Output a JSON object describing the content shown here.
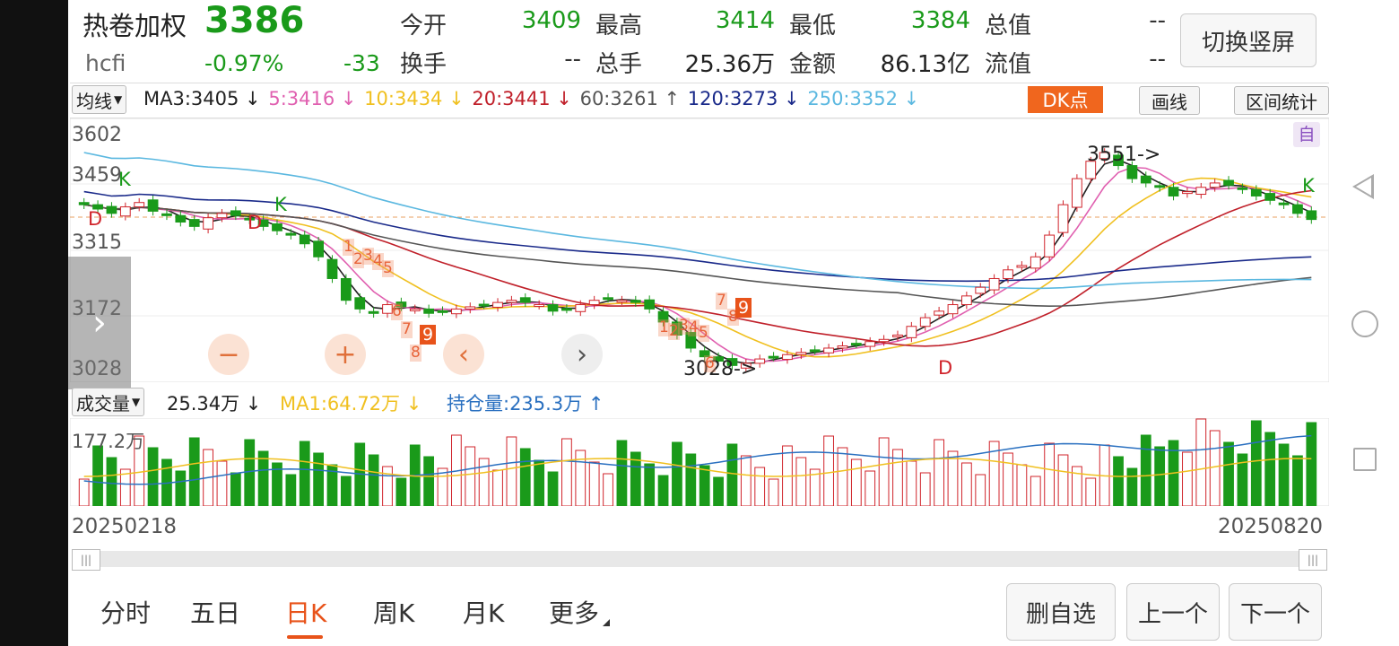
{
  "header": {
    "name": "热卷加权",
    "price": "3386",
    "code": "hcfi",
    "change_pct": "-0.97%",
    "change": "-33",
    "open_label": "今开",
    "open": "3409",
    "high_label": "最高",
    "high": "3414",
    "low_label": "最低",
    "low": "3384",
    "total_value_label": "总值",
    "total_value": "--",
    "turnover_label": "换手",
    "turnover": "--",
    "total_hands_label": "总手",
    "total_hands": "25.36万",
    "amount_label": "金额",
    "amount": "86.13亿",
    "float_value_label": "流值",
    "float_value": "--",
    "toggle_label": "切换竖屏"
  },
  "ma_bar": {
    "select_label": "均线",
    "ma3": "MA3:3405 ↓",
    "ma5": "5:3416 ↓",
    "ma10": "10:3434 ↓",
    "ma20": "20:3441 ↓",
    "ma60": "60:3261 ↑",
    "ma120": "120:3273 ↓",
    "ma250": "250:3352 ↓",
    "dk_label": "DK点",
    "draw_label": "画线",
    "stats_label": "区间统计"
  },
  "colors": {
    "up": "#d0242b",
    "down": "#1a9a1a",
    "ma3": "#222222",
    "ma5": "#e060b0",
    "ma10": "#f0c020",
    "ma20": "#c0202a",
    "ma60": "#555555",
    "ma120": "#1a2a8a",
    "ma250": "#5bb8e0",
    "dk": "#f0661e"
  },
  "price_axis": [
    "3602",
    "3459",
    "3315",
    "3172",
    "3028"
  ],
  "chart_annotations": {
    "high_marker": "3551->",
    "low_marker": "3028->",
    "k1": "K",
    "k2": "K",
    "k3": "K",
    "d1": "D",
    "d2": "D",
    "d3": "D",
    "self_tag": "自",
    "seq1": [
      "1",
      "2",
      "3",
      "4",
      "5",
      "6",
      "7",
      "8",
      "9"
    ],
    "seq2": [
      "1",
      "2",
      "3",
      "4",
      "5",
      "6",
      "7",
      "8",
      "9"
    ]
  },
  "volume_bar": {
    "select_label": "成交量",
    "vol": "25.34万 ↓",
    "ma1": "MA1:64.72万 ↓",
    "oi": "持仓量:235.3万 ↑",
    "axis_top": "177.2万"
  },
  "dates": {
    "start": "20250218",
    "end": "20250820"
  },
  "tabs": [
    "分时",
    "五日",
    "日K",
    "周K",
    "月K",
    "更多"
  ],
  "active_tab": "日K",
  "buttons": {
    "remove_fav": "删自选",
    "prev": "上一个",
    "next": "下一个"
  },
  "zoom": {
    "minus": "−",
    "plus": "+",
    "left": "‹",
    "right": "›"
  },
  "chart_data": {
    "type": "candlestick",
    "ylim": [
      3028,
      3602
    ],
    "close_levels": [
      3420,
      3410,
      3400,
      3415,
      3425,
      3405,
      3395,
      3380,
      3370,
      3390,
      3400,
      3395,
      3385,
      3370,
      3360,
      3350,
      3330,
      3300,
      3250,
      3200,
      3180,
      3170,
      3190,
      3185,
      3180,
      3170,
      3175,
      3180,
      3185,
      3190,
      3195,
      3200,
      3195,
      3190,
      3175,
      3180,
      3190,
      3200,
      3205,
      3200,
      3195,
      3180,
      3150,
      3120,
      3090,
      3070,
      3060,
      3050,
      3055,
      3065,
      3070,
      3075,
      3080,
      3085,
      3090,
      3095,
      3100,
      3105,
      3110,
      3120,
      3140,
      3160,
      3175,
      3190,
      3210,
      3230,
      3250,
      3270,
      3280,
      3300,
      3350,
      3420,
      3480,
      3520,
      3540,
      3510,
      3480,
      3470,
      3460,
      3440,
      3450,
      3460,
      3470,
      3465,
      3455,
      3440,
      3430,
      3420,
      3400,
      3386
    ]
  }
}
